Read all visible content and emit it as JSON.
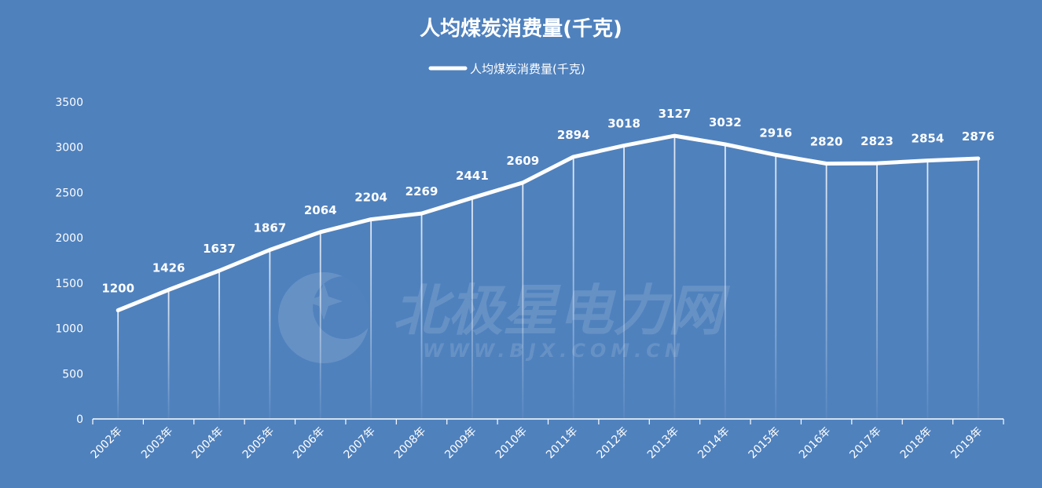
{
  "chart_data": {
    "type": "line",
    "title": "人均煤炭消费量(千克)",
    "categories": [
      "2002年",
      "2003年",
      "2004年",
      "2005年",
      "2006年",
      "2007年",
      "2008年",
      "2009年",
      "2010年",
      "2011年",
      "2012年",
      "2013年",
      "2014年",
      "2015年",
      "2016年",
      "2017年",
      "2018年",
      "2019年"
    ],
    "series": [
      {
        "name": "人均煤炭消费量(千克)",
        "values": [
          1200,
          1426,
          1637,
          1867,
          2064,
          2204,
          2269,
          2441,
          2609,
          2894,
          3018,
          3127,
          3032,
          2916,
          2820,
          2823,
          2854,
          2876
        ]
      }
    ],
    "ylim": [
      0,
      3500
    ],
    "yticks": [
      0,
      500,
      1000,
      1500,
      2000,
      2500,
      3000,
      3500
    ],
    "legend_position": "top-center",
    "grid": false,
    "drop_lines": true,
    "data_labels": true
  },
  "watermark": {
    "main": "北极星电力网",
    "sub": "WWW.BJX.COM.CN"
  },
  "colors": {
    "background": "#4f81bd",
    "line": "#ffffff",
    "text": "#ffffff"
  }
}
